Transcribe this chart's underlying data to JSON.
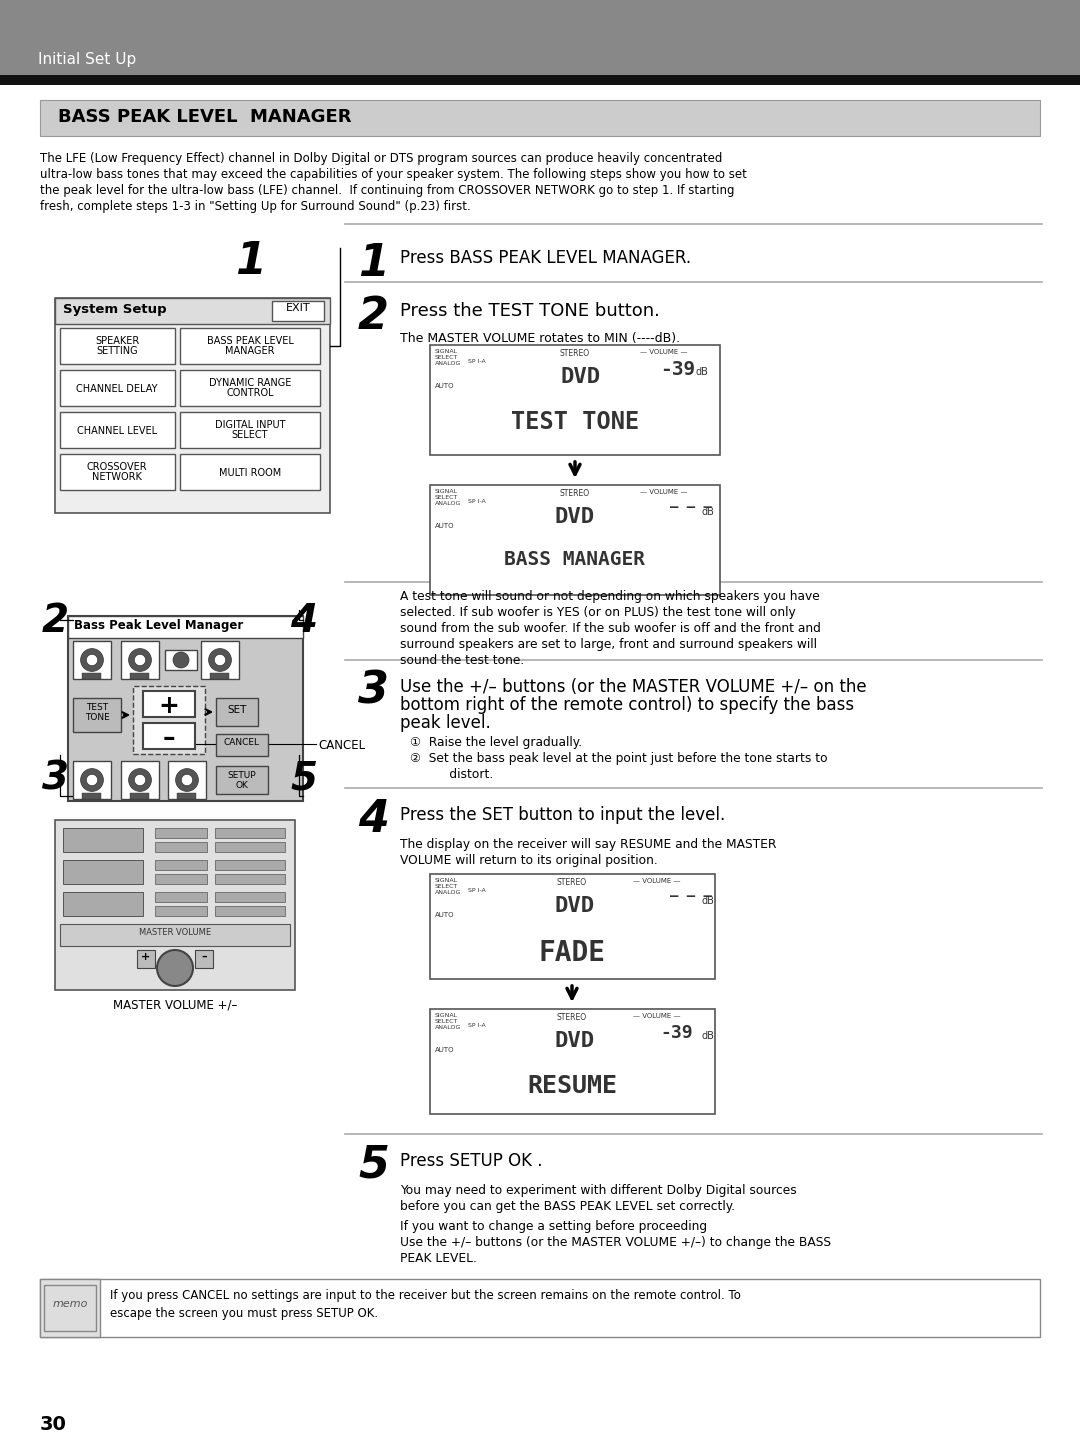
{
  "page_bg": "#ffffff",
  "header_bg": "#808080",
  "header_text": "Initial Set Up",
  "header_text_color": "#ffffff",
  "black_bar_color": "#111111",
  "section_title_bg": "#cccccc",
  "section_title": "BASS PEAK LEVEL  MANAGER",
  "intro_line1": "The LFE (Low Frequency Effect) channel in Dolby Digital or DTS program sources can produce heavily concentrated",
  "intro_line2": "ultra-low bass tones that may exceed the capabilities of your speaker system. The following steps show you how to set",
  "intro_line3": "the peak level for the ultra-low bass (LFE) channel.  If continuing from CROSSOVER NETWORK go to step 1. If starting",
  "intro_line4": "fresh, complete steps 1-3 in \"Setting Up for Surround Sound\" (p.23) first.",
  "divider_color": "#aaaaaa",
  "step1_heading": "Press BASS PEAK LEVEL MANAGER.",
  "step2_heading": "Press the TEST TONE button.",
  "step2_sub": "The MASTER VOLUME rotates to MIN (----dB).",
  "step3_heading1": "Use the +/– buttons (or the MASTER VOLUME +/– on the",
  "step3_heading2": "bottom right of the remote control) to specify the bass",
  "step3_heading3": "peak level.",
  "step3_sub1": "①  Raise the level gradually.",
  "step3_sub2": "②  Set the bass peak level at the point just before the tone starts to",
  "step3_sub3": "     distort.",
  "step4_heading": "Press the SET button to input the level.",
  "step4_sub1": "The display on the receiver will say RESUME and the MASTER",
  "step4_sub2": "VOLUME will return to its original position.",
  "step5_heading": "Press SETUP OK .",
  "step5_sub1": "You may need to experiment with different Dolby Digital sources",
  "step5_sub2": "before you can get the BASS PEAK LEVEL set correctly.",
  "step5_sub3": "If you want to change a setting before proceeding",
  "step5_sub4": "Use the +/– buttons (or the MASTER VOLUME +/–) to change the BASS",
  "step5_sub5": "PEAK LEVEL.",
  "memo_line1": "If you press CANCEL no settings are input to the receiver but the screen remains on the remote control. To",
  "memo_line2": "escape the screen you must press SETUP OK.",
  "page_num": "30",
  "cancel_label": "CANCEL",
  "master_vol_label": "MASTER VOLUME +/–",
  "test_tone_text1": "TEST TONE note paragraph: A test tone will sound or not depending on which speakers you have",
  "test_tone_para1": "A test tone will sound or not depending on which speakers you have",
  "test_tone_para2": "selected. If sub woofer is YES (or on PLUS) the test tone will only",
  "test_tone_para3": "sound from the sub woofer. If the sub woofer is off and the front and",
  "test_tone_para4": "surround speakers are set to large, front and surround speakers will",
  "test_tone_para5": "sound the test tone."
}
